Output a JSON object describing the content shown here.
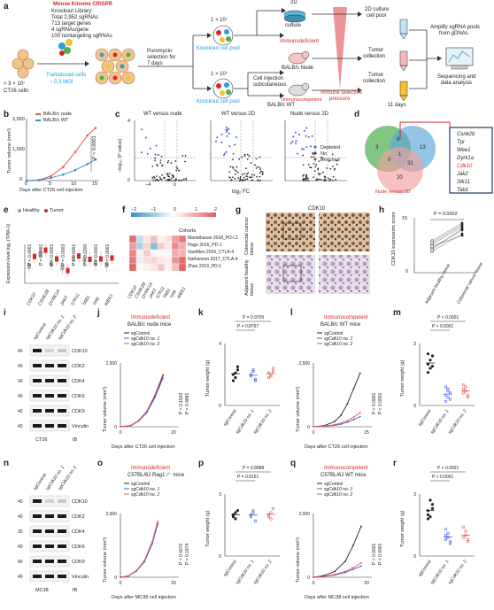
{
  "panel_letters": {
    "a": "a",
    "b": "b",
    "c": "c",
    "d": "d",
    "e": "e",
    "f": "f",
    "g": "g",
    "h": "h",
    "i": "i",
    "j": "j",
    "k": "k",
    "l": "l",
    "m": "m",
    "n": "n",
    "o": "o",
    "p": "p",
    "q": "q",
    "r": "r"
  },
  "a": {
    "library_title": "Mouse Kinome CRISPR",
    "library_lines": [
      "Knockout Library:",
      "Total 2,952 sgRNAs",
      "713 target genes",
      "4 sgRNAs/gene",
      "100 nontargeting sgRNAs"
    ],
    "cells": "> 3 × 10⁷",
    "cells2": "CT26 cells",
    "transduced": "Transduced cells",
    "moi": "~ 0.3 MOI",
    "puro": "Puromycin",
    "puro2": "selection for",
    "puro3": "7 days",
    "pool_count1": "1 × 10⁷",
    "pool_count2": "1 × 10⁷",
    "ko_pool1": "Knockout cell pool",
    "ko_pool2": "Knockout cell pool",
    "culture2d": "2D",
    "culture2d_2": "culture",
    "immunodeficient": "Immunodeficient",
    "balb_nude": "BALB/c Nude",
    "injection": "Cell injection",
    "injection2": "subcutaneous",
    "immunocompetent": "Immunocompetent",
    "balb_wt": "BALB/c WT",
    "pressure": "Immune selective",
    "pressure2": "pressure",
    "pool2d": "2D culture",
    "pool2d_2": "cell pool",
    "tumor_coll1": "Tumor",
    "tumor_coll1b": "collection",
    "tumor_coll2": "Tumor",
    "tumor_coll2b": "collection",
    "days11": "11 days",
    "amplify": "Amplify sgRNA pools",
    "amplify2": "from gDNAs",
    "seq": "Sequencing and",
    "seq2": "data analysis"
  },
  "b": {
    "legend": [
      "BALB/c nude",
      "BALB/c WT"
    ],
    "ylabel": "Tumor volume (mm³)",
    "xlabel": "Days after CT26 cell injection",
    "pval": "P < 0.0001",
    "yticks": [
      "0",
      "500",
      "1,000",
      "1,500",
      "2,000"
    ],
    "xticks": [
      "0",
      "5",
      "10",
      "15"
    ]
  },
  "c": {
    "titles": [
      "WT versus nude",
      "WT versus 2D",
      "Nude versus 2D"
    ],
    "ylabel": "−log₁₀ (P value)",
    "xlabel": "log₂ FC",
    "legend": [
      "Depleted",
      "No",
      "Enriched"
    ],
    "yticks": [
      "0",
      "1",
      "2",
      "3",
      "4"
    ],
    "xticks": [
      "−4",
      "−2",
      "0",
      "2"
    ]
  },
  "d": {
    "set_labels": [
      "WT versus nude",
      "WT versus 2D",
      "Nude versus 2D"
    ],
    "numbers": [
      "3",
      "6",
      "13",
      "0",
      "1",
      "32",
      "20"
    ],
    "genes": [
      "Csnk2b",
      "Tpr",
      "Wee1",
      "Dyrk1a",
      "Cdk10",
      "Jak2",
      "Stk11",
      "Tab1"
    ]
  },
  "e": {
    "legend": [
      "Healthy",
      "Tumor"
    ],
    "ylabel": "Expression level log₂ (TPM+1)",
    "pvals": [
      "P < 0.0001",
      "P < 0.0001",
      "P < 0.0001",
      "P = 0.0003",
      "P < 0.0001",
      "P = 0.2200",
      "P < 0.0001",
      "P < 0.0001"
    ],
    "genes": [
      "CDK10",
      "CSNK2B",
      "DYRK1A",
      "JAK2",
      "STK11",
      "TAB1",
      "TPR",
      "WEE1"
    ],
    "yticks": [
      "0",
      "2",
      "4",
      "6",
      "8"
    ]
  },
  "f": {
    "scale": [
      "−2",
      "−1",
      "0",
      "1",
      "2"
    ],
    "cohort_title": "Cohorts",
    "cohorts": [
      "Mariathasan 2018_PD-L1",
      "Hugo 2016_PD-1",
      "VanAllen 2015_CTLA-4",
      "Nathanson 2017_CTLA-4",
      "Zhao 2019_PD-1"
    ],
    "genes": [
      "CDK10",
      "CSNK2B",
      "DYRK1A",
      "JAK2",
      "STK11",
      "TAB1",
      "TPR",
      "WEE1"
    ],
    "matrix": [
      [
        1.8,
        -0.6,
        0.3,
        0.8,
        0.2,
        0.4,
        1.2,
        1.6
      ],
      [
        1.2,
        -0.8,
        0.5,
        -1.2,
        0.6,
        0.3,
        1.4,
        1.0
      ],
      [
        1.5,
        0.2,
        0.6,
        0.1,
        0.1,
        -0.1,
        1.0,
        0.9
      ],
      [
        1.6,
        -0.3,
        0.4,
        0.5,
        0.3,
        0.2,
        1.3,
        1.8
      ],
      [
        1.9,
        0.1,
        0.2,
        0.3,
        0.7,
        0.2,
        0.8,
        1.9
      ]
    ],
    "colors": {
      "neg": "#3a8dc8",
      "mid": "#ffffff",
      "pos": "#e35a5a"
    }
  },
  "g": {
    "title": "CDK10",
    "row1": "Colorectal cancer tissue",
    "row2": "Adjacent healthy tissue"
  },
  "h": {
    "pval": "P = 0.0002",
    "ylabel": "CDK10 expression score",
    "xticks": [
      "Adjacent healthy tissue",
      "Colorectal cancer tissue"
    ],
    "yticks": [
      "0",
      "5",
      "10",
      "15"
    ]
  },
  "i": {
    "lanes": [
      "sgControl",
      "sgCdk10 no. 1",
      "sgCdk10 no. 2"
    ],
    "markers": [
      "40",
      "40",
      "30",
      "40",
      "40",
      "40",
      "100"
    ],
    "bands": [
      "CDK10",
      "CDK2",
      "CDK4",
      "CDK6",
      "CDK9",
      "Vinculin"
    ],
    "cell": "CT26",
    "ib": "IB"
  },
  "j": {
    "tag": "Immunodeficient",
    "title": "BALB/c nude mice",
    "legend": [
      "sgControl",
      "sgCdk10 no. 1",
      "sgCdk10 no. 2"
    ],
    "pvals": [
      "P = 0.1543",
      "P = 0.4881"
    ],
    "ylabel": "Tumor volume (mm³)",
    "xlabel": "Days after CT26 cell injection",
    "yticks": [
      "0",
      "500",
      "1,000",
      "1,500",
      "2,000",
      "2,500"
    ],
    "xticks": [
      "0",
      "5",
      "10",
      "15",
      "20"
    ]
  },
  "k": {
    "pvals": [
      "P = 0.9705",
      "P = 0.8797"
    ],
    "ylabel": "Tumor weight (g)",
    "xticks": [
      "sgControl",
      "sgCdk10 no. 1",
      "sgCdk10 no. 2"
    ],
    "yticks": [
      "0",
      "1",
      "2",
      "3",
      "4"
    ]
  },
  "l": {
    "tag": "Immunocompetent",
    "title": "BALB/c WT mice",
    "legend": [
      "sgControl",
      "sgCdk10 no. 1",
      "sgCdk10 no. 2"
    ],
    "pvals": [
      "P < 0.0001",
      "P < 0.0001"
    ],
    "ylabel": "Tumor volume (mm³)",
    "xlabel": "Days after CT26 cell injection",
    "yticks": [
      "0",
      "500",
      "1,000",
      "1,500",
      "2,000",
      "2,500"
    ],
    "xticks": [
      "0",
      "5",
      "10",
      "15",
      "20",
      "25"
    ]
  },
  "m": {
    "pvals": [
      "P < 0.0001",
      "P < 0.0001"
    ],
    "ylabel": "Tumor weight (g)",
    "xticks": [
      "sgControl",
      "sgCdk10 no. 1",
      "sgCdk10 no. 2"
    ],
    "yticks": [
      "0",
      "1",
      "2",
      "3"
    ]
  },
  "n": {
    "lanes": [
      "sgControl",
      "sgCdk10 no. 1",
      "sgCdk10 no. 2"
    ],
    "markers": [
      "40",
      "40",
      "30",
      "40",
      "40",
      "40",
      "100"
    ],
    "bands": [
      "CDK10",
      "CDK2",
      "CDK4",
      "CDK6",
      "CDK9",
      "Vinculin"
    ],
    "cell": "MC38",
    "ib": "IB"
  },
  "o": {
    "tag": "Immunodeficient",
    "title": "C57BL/6J Rag1⁻⁄⁻ mice",
    "legend": [
      "sgControl",
      "sgCdk10 no. 1",
      "sgCdk10 no. 2"
    ],
    "pvals": [
      "P = 0.4270",
      "P = 0.1974"
    ],
    "ylabel": "Tumor volume (mm³)",
    "xlabel": "Days after MC38 cell injection",
    "yticks": [
      "0",
      "500",
      "1,000",
      "1,500",
      "2,000"
    ],
    "xticks": [
      "0",
      "5",
      "10",
      "15",
      "20"
    ]
  },
  "p": {
    "pvals": [
      "P = 0.8988",
      "P = 0.8151"
    ],
    "ylabel": "Tumor weight (g)",
    "xticks": [
      "sgControl",
      "sgCdk10 no. 1",
      "sgCdk10 no. 2"
    ],
    "yticks": [
      "0",
      "1",
      "2",
      "3"
    ]
  },
  "q": {
    "tag": "Immunocompetent",
    "title": "C57BL/6J WT mice",
    "legend": [
      "sgControl",
      "sgCdk10 no. 1",
      "sgCdk10 no. 2"
    ],
    "pvals": [
      "P < 0.0001",
      "P < 0.0001"
    ],
    "ylabel": "Tumor volume (mm³)",
    "xlabel": "Days after MC38 cell injection",
    "yticks": [
      "0",
      "500",
      "1,000",
      "1,500",
      "2,000"
    ],
    "xticks": [
      "0",
      "5",
      "10",
      "15",
      "20"
    ]
  },
  "r": {
    "pvals": [
      "P < 0.0001",
      "P < 0.0001"
    ],
    "ylabel": "Tumor weight (g)",
    "xticks": [
      "sgControl",
      "sgCdk10 no. 1",
      "sgCdk10 no. 2"
    ],
    "yticks": [
      "0",
      "1",
      "2",
      "3"
    ]
  },
  "chart_data": [
    {
      "type": "line",
      "panel": "b",
      "x": [
        0,
        3,
        6,
        9,
        12,
        15,
        17
      ],
      "series": [
        {
          "name": "BALB/c nude",
          "values": [
            0,
            20,
            150,
            450,
            950,
            1500,
            1750
          ]
        },
        {
          "name": "BALB/c WT",
          "values": [
            0,
            15,
            90,
            200,
            350,
            550,
            700
          ]
        }
      ],
      "ylim": [
        0,
        2000
      ],
      "xlabel": "Days after CT26 cell injection",
      "ylabel": "Tumor volume (mm³)"
    },
    {
      "type": "line",
      "panel": "j",
      "x": [
        0,
        4,
        7,
        10,
        13,
        16
      ],
      "series": [
        {
          "name": "sgControl",
          "values": [
            0,
            50,
            250,
            600,
            1200,
            2000
          ]
        },
        {
          "name": "sgCdk10 no. 1",
          "values": [
            0,
            45,
            230,
            560,
            1150,
            1900
          ]
        },
        {
          "name": "sgCdk10 no. 2",
          "values": [
            0,
            55,
            260,
            620,
            1250,
            2050
          ]
        }
      ],
      "ylim": [
        0,
        2500
      ]
    },
    {
      "type": "line",
      "panel": "l",
      "x": [
        0,
        5,
        10,
        13,
        16,
        19,
        22
      ],
      "series": [
        {
          "name": "sgControl",
          "values": [
            0,
            40,
            200,
            450,
            900,
            1500,
            2100
          ]
        },
        {
          "name": "sgCdk10 no. 1",
          "values": [
            0,
            20,
            60,
            100,
            180,
            280,
            400
          ]
        },
        {
          "name": "sgCdk10 no. 2",
          "values": [
            0,
            25,
            80,
            140,
            240,
            380,
            550
          ]
        }
      ],
      "ylim": [
        0,
        2500
      ]
    },
    {
      "type": "line",
      "panel": "o",
      "x": [
        0,
        3,
        6,
        9,
        12,
        14
      ],
      "series": [
        {
          "name": "sgControl",
          "values": [
            0,
            40,
            200,
            500,
            1100,
            1700
          ]
        },
        {
          "name": "sgCdk10 no. 1",
          "values": [
            0,
            35,
            190,
            480,
            1050,
            1650
          ]
        },
        {
          "name": "sgCdk10 no. 2",
          "values": [
            0,
            45,
            210,
            520,
            1120,
            1750
          ]
        }
      ],
      "ylim": [
        0,
        2000
      ]
    },
    {
      "type": "line",
      "panel": "q",
      "x": [
        0,
        4,
        8,
        12,
        15,
        18
      ],
      "series": [
        {
          "name": "sgControl",
          "values": [
            0,
            50,
            180,
            500,
            1000,
            1600
          ]
        },
        {
          "name": "sgCdk10 no. 1",
          "values": [
            0,
            20,
            70,
            150,
            250,
            350
          ]
        },
        {
          "name": "sgCdk10 no. 2",
          "values": [
            0,
            25,
            90,
            180,
            300,
            450
          ]
        }
      ],
      "ylim": [
        0,
        2000
      ]
    },
    {
      "type": "scatter",
      "panel": "k",
      "categories": [
        "sgControl",
        "sgCdk10 no. 1",
        "sgCdk10 no. 2"
      ],
      "values": [
        [
          2.0,
          1.8,
          2.3,
          1.6,
          2.1,
          2.5
        ],
        [
          1.9,
          2.2,
          1.7,
          2.0,
          2.3,
          1.6
        ],
        [
          2.1,
          1.9,
          2.4,
          1.8,
          2.0,
          2.2
        ]
      ],
      "ylim": [
        0,
        4
      ]
    },
    {
      "type": "scatter",
      "panel": "m",
      "categories": [
        "sgControl",
        "sgCdk10 no. 1",
        "sgCdk10 no. 2"
      ],
      "values": [
        [
          2.0,
          1.8,
          2.4,
          1.6,
          2.2,
          1.9,
          2.5
        ],
        [
          0.5,
          0.7,
          0.3,
          0.9,
          0.4,
          0.6,
          0.2,
          0.8
        ],
        [
          0.6,
          0.9,
          0.4,
          1.0,
          0.7,
          0.5,
          0.8
        ]
      ],
      "ylim": [
        0,
        3
      ]
    },
    {
      "type": "scatter",
      "panel": "p",
      "categories": [
        "sgControl",
        "sgCdk10 no. 1",
        "sgCdk10 no. 2"
      ],
      "values": [
        [
          2.0,
          1.8,
          2.2,
          1.9,
          2.1
        ],
        [
          1.9,
          2.1,
          1.7,
          2.0,
          2.2
        ],
        [
          2.0,
          1.8,
          2.3,
          1.9,
          2.1
        ]
      ],
      "ylim": [
        0,
        3
      ]
    },
    {
      "type": "scatter",
      "panel": "r",
      "categories": [
        "sgControl",
        "sgCdk10 no. 1",
        "sgCdk10 no. 2"
      ],
      "values": [
        [
          2.2,
          1.9,
          2.5,
          2.0,
          2.7,
          2.3,
          1.8
        ],
        [
          0.8,
          1.1,
          0.6,
          1.3,
          0.9,
          0.7,
          1.0
        ],
        [
          0.9,
          1.2,
          0.7,
          1.4,
          1.0,
          0.8
        ]
      ],
      "ylim": [
        0,
        3
      ]
    },
    {
      "type": "scatter",
      "panel": "h",
      "categories": [
        "Adjacent healthy tissue",
        "Colorectal cancer tissue"
      ],
      "values": [
        [
          6,
          7,
          8,
          9,
          7.5,
          6.5,
          8.5
        ],
        [
          11,
          12,
          13,
          14,
          10.5,
          12.5,
          13.5
        ]
      ],
      "ylim": [
        0,
        15
      ]
    }
  ]
}
